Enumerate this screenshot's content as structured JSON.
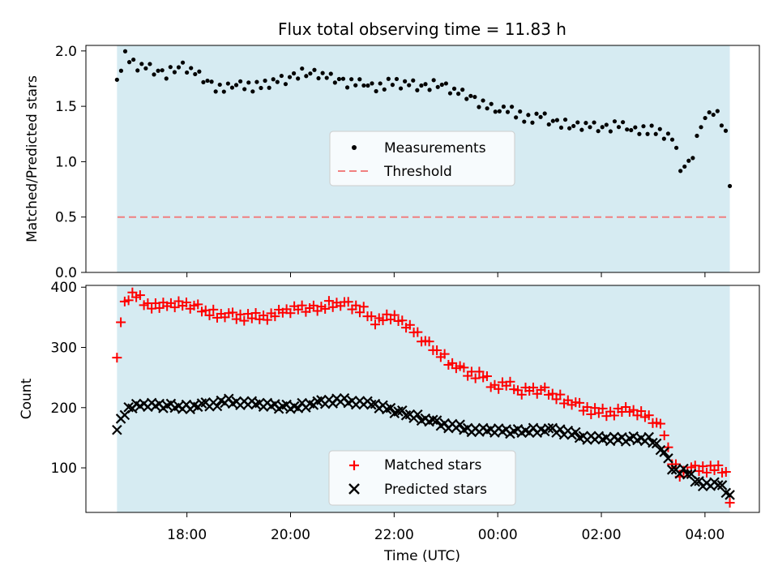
{
  "chart_data": {
    "title": "Flux total observing time = 11.83 h",
    "xlabel": "Time (UTC)",
    "x_ticks": [
      "18:00",
      "20:00",
      "22:00",
      "00:00",
      "02:00",
      "04:00"
    ],
    "x_tick_hours": [
      18,
      20,
      22,
      24,
      26,
      28
    ],
    "x_range_hours": [
      16.05,
      29.05
    ],
    "shade_range_hours": [
      16.65,
      28.48
    ],
    "colors": {
      "shade": "#add8e6",
      "matched": "#ff0000",
      "predicted": "#000000",
      "threshold": "#f08080",
      "measurement": "#000000"
    },
    "top": {
      "type": "scatter",
      "ylabel": "Matched/Predicted stars",
      "ylim": [
        0.0,
        2.05
      ],
      "y_ticks": [
        "0.0",
        "0.5",
        "1.0",
        "1.5",
        "2.0"
      ],
      "threshold": 0.5,
      "legend": {
        "position": "center",
        "measurements": "Measurements",
        "threshold": "Threshold"
      },
      "knots": [
        [
          16.65,
          1.74
        ],
        [
          16.8,
          1.95
        ],
        [
          17.0,
          1.88
        ],
        [
          17.3,
          1.84
        ],
        [
          17.6,
          1.78
        ],
        [
          17.9,
          1.87
        ],
        [
          18.1,
          1.82
        ],
        [
          18.4,
          1.72
        ],
        [
          18.7,
          1.65
        ],
        [
          19.0,
          1.7
        ],
        [
          19.3,
          1.66
        ],
        [
          19.6,
          1.72
        ],
        [
          19.9,
          1.74
        ],
        [
          20.2,
          1.79
        ],
        [
          20.5,
          1.8
        ],
        [
          20.8,
          1.75
        ],
        [
          21.1,
          1.72
        ],
        [
          21.4,
          1.7
        ],
        [
          21.7,
          1.66
        ],
        [
          22.0,
          1.72
        ],
        [
          22.3,
          1.7
        ],
        [
          22.6,
          1.67
        ],
        [
          22.9,
          1.7
        ],
        [
          23.2,
          1.63
        ],
        [
          23.5,
          1.58
        ],
        [
          23.8,
          1.5
        ],
        [
          24.0,
          1.45
        ],
        [
          24.2,
          1.48
        ],
        [
          24.5,
          1.38
        ],
        [
          24.8,
          1.42
        ],
        [
          25.1,
          1.35
        ],
        [
          25.4,
          1.32
        ],
        [
          25.7,
          1.33
        ],
        [
          26.0,
          1.3
        ],
        [
          26.3,
          1.34
        ],
        [
          26.6,
          1.28
        ],
        [
          26.9,
          1.28
        ],
        [
          27.2,
          1.26
        ],
        [
          27.4,
          1.2
        ],
        [
          27.5,
          0.96
        ],
        [
          27.65,
          0.94
        ],
        [
          27.8,
          1.1
        ],
        [
          27.95,
          1.38
        ],
        [
          28.1,
          1.42
        ],
        [
          28.2,
          1.49
        ],
        [
          28.35,
          1.3
        ],
        [
          28.45,
          1.18
        ],
        [
          28.48,
          0.78
        ]
      ],
      "noise": [
        0.04,
        -0.03,
        0.05,
        -0.02,
        0.03,
        -0.05,
        0.02,
        -0.01,
        0.04,
        -0.04,
        0.01,
        0.03,
        -0.03,
        0.05,
        -0.02,
        0.0,
        0.03,
        -0.04,
        0.02,
        -0.01,
        0.04,
        -0.03,
        0.01,
        0.02,
        -0.05,
        0.03,
        -0.02,
        0.04,
        -0.01,
        0.0,
        0.03,
        -0.03
      ],
      "samples": 150
    },
    "bottom": {
      "type": "scatter",
      "ylabel": "Count",
      "ylim": [
        26,
        403
      ],
      "y_ticks": [
        100,
        200,
        300,
        400
      ],
      "legend": {
        "position": "lower center",
        "matched": "Matched stars",
        "predicted": "Predicted stars"
      },
      "matched_knots": [
        [
          16.65,
          283
        ],
        [
          16.75,
          362
        ],
        [
          16.85,
          385
        ],
        [
          17.0,
          387
        ],
        [
          17.2,
          372
        ],
        [
          17.5,
          368
        ],
        [
          17.8,
          372
        ],
        [
          18.1,
          370
        ],
        [
          18.4,
          358
        ],
        [
          18.7,
          352
        ],
        [
          19.0,
          352
        ],
        [
          19.3,
          350
        ],
        [
          19.6,
          352
        ],
        [
          19.9,
          360
        ],
        [
          20.2,
          366
        ],
        [
          20.5,
          363
        ],
        [
          20.8,
          372
        ],
        [
          21.1,
          370
        ],
        [
          21.4,
          364
        ],
        [
          21.6,
          340
        ],
        [
          21.8,
          352
        ],
        [
          22.0,
          348
        ],
        [
          22.2,
          340
        ],
        [
          22.5,
          318
        ],
        [
          22.7,
          302
        ],
        [
          22.9,
          288
        ],
        [
          23.1,
          272
        ],
        [
          23.4,
          258
        ],
        [
          23.7,
          254
        ],
        [
          23.9,
          235
        ],
        [
          24.2,
          240
        ],
        [
          24.4,
          225
        ],
        [
          24.6,
          230
        ],
        [
          24.9,
          228
        ],
        [
          25.2,
          215
        ],
        [
          25.5,
          204
        ],
        [
          25.8,
          196
        ],
        [
          26.1,
          190
        ],
        [
          26.4,
          196
        ],
        [
          26.7,
          192
        ],
        [
          27.0,
          180
        ],
        [
          27.2,
          162
        ],
        [
          27.35,
          112
        ],
        [
          27.5,
          90
        ],
        [
          27.7,
          95
        ],
        [
          27.9,
          100
        ],
        [
          28.2,
          98
        ],
        [
          28.4,
          95
        ],
        [
          28.48,
          42
        ]
      ],
      "predicted_knots": [
        [
          16.65,
          163
        ],
        [
          16.75,
          188
        ],
        [
          16.9,
          200
        ],
        [
          17.2,
          205
        ],
        [
          17.6,
          203
        ],
        [
          18.0,
          200
        ],
        [
          18.4,
          205
        ],
        [
          18.8,
          210
        ],
        [
          19.2,
          207
        ],
        [
          19.6,
          204
        ],
        [
          20.0,
          200
        ],
        [
          20.4,
          205
        ],
        [
          20.8,
          212
        ],
        [
          21.2,
          210
        ],
        [
          21.6,
          205
        ],
        [
          22.0,
          195
        ],
        [
          22.4,
          185
        ],
        [
          22.8,
          175
        ],
        [
          23.2,
          168
        ],
        [
          23.6,
          162
        ],
        [
          24.0,
          162
        ],
        [
          24.4,
          160
        ],
        [
          24.8,
          162
        ],
        [
          25.2,
          162
        ],
        [
          25.6,
          152
        ],
        [
          26.0,
          148
        ],
        [
          26.4,
          148
        ],
        [
          26.8,
          148
        ],
        [
          27.0,
          145
        ],
        [
          27.2,
          125
        ],
        [
          27.4,
          95
        ],
        [
          27.6,
          95
        ],
        [
          27.8,
          80
        ],
        [
          28.0,
          72
        ],
        [
          28.3,
          72
        ],
        [
          28.48,
          55
        ]
      ],
      "noise": [
        6,
        -5,
        3,
        -7,
        5,
        -2,
        7,
        -4,
        2,
        -6,
        4,
        -3,
        6,
        -1,
        3,
        -5,
        5,
        -2,
        4,
        -6,
        1,
        6,
        -3,
        2,
        -4,
        7,
        -5,
        3,
        -2,
        5
      ],
      "samples": 160
    }
  }
}
